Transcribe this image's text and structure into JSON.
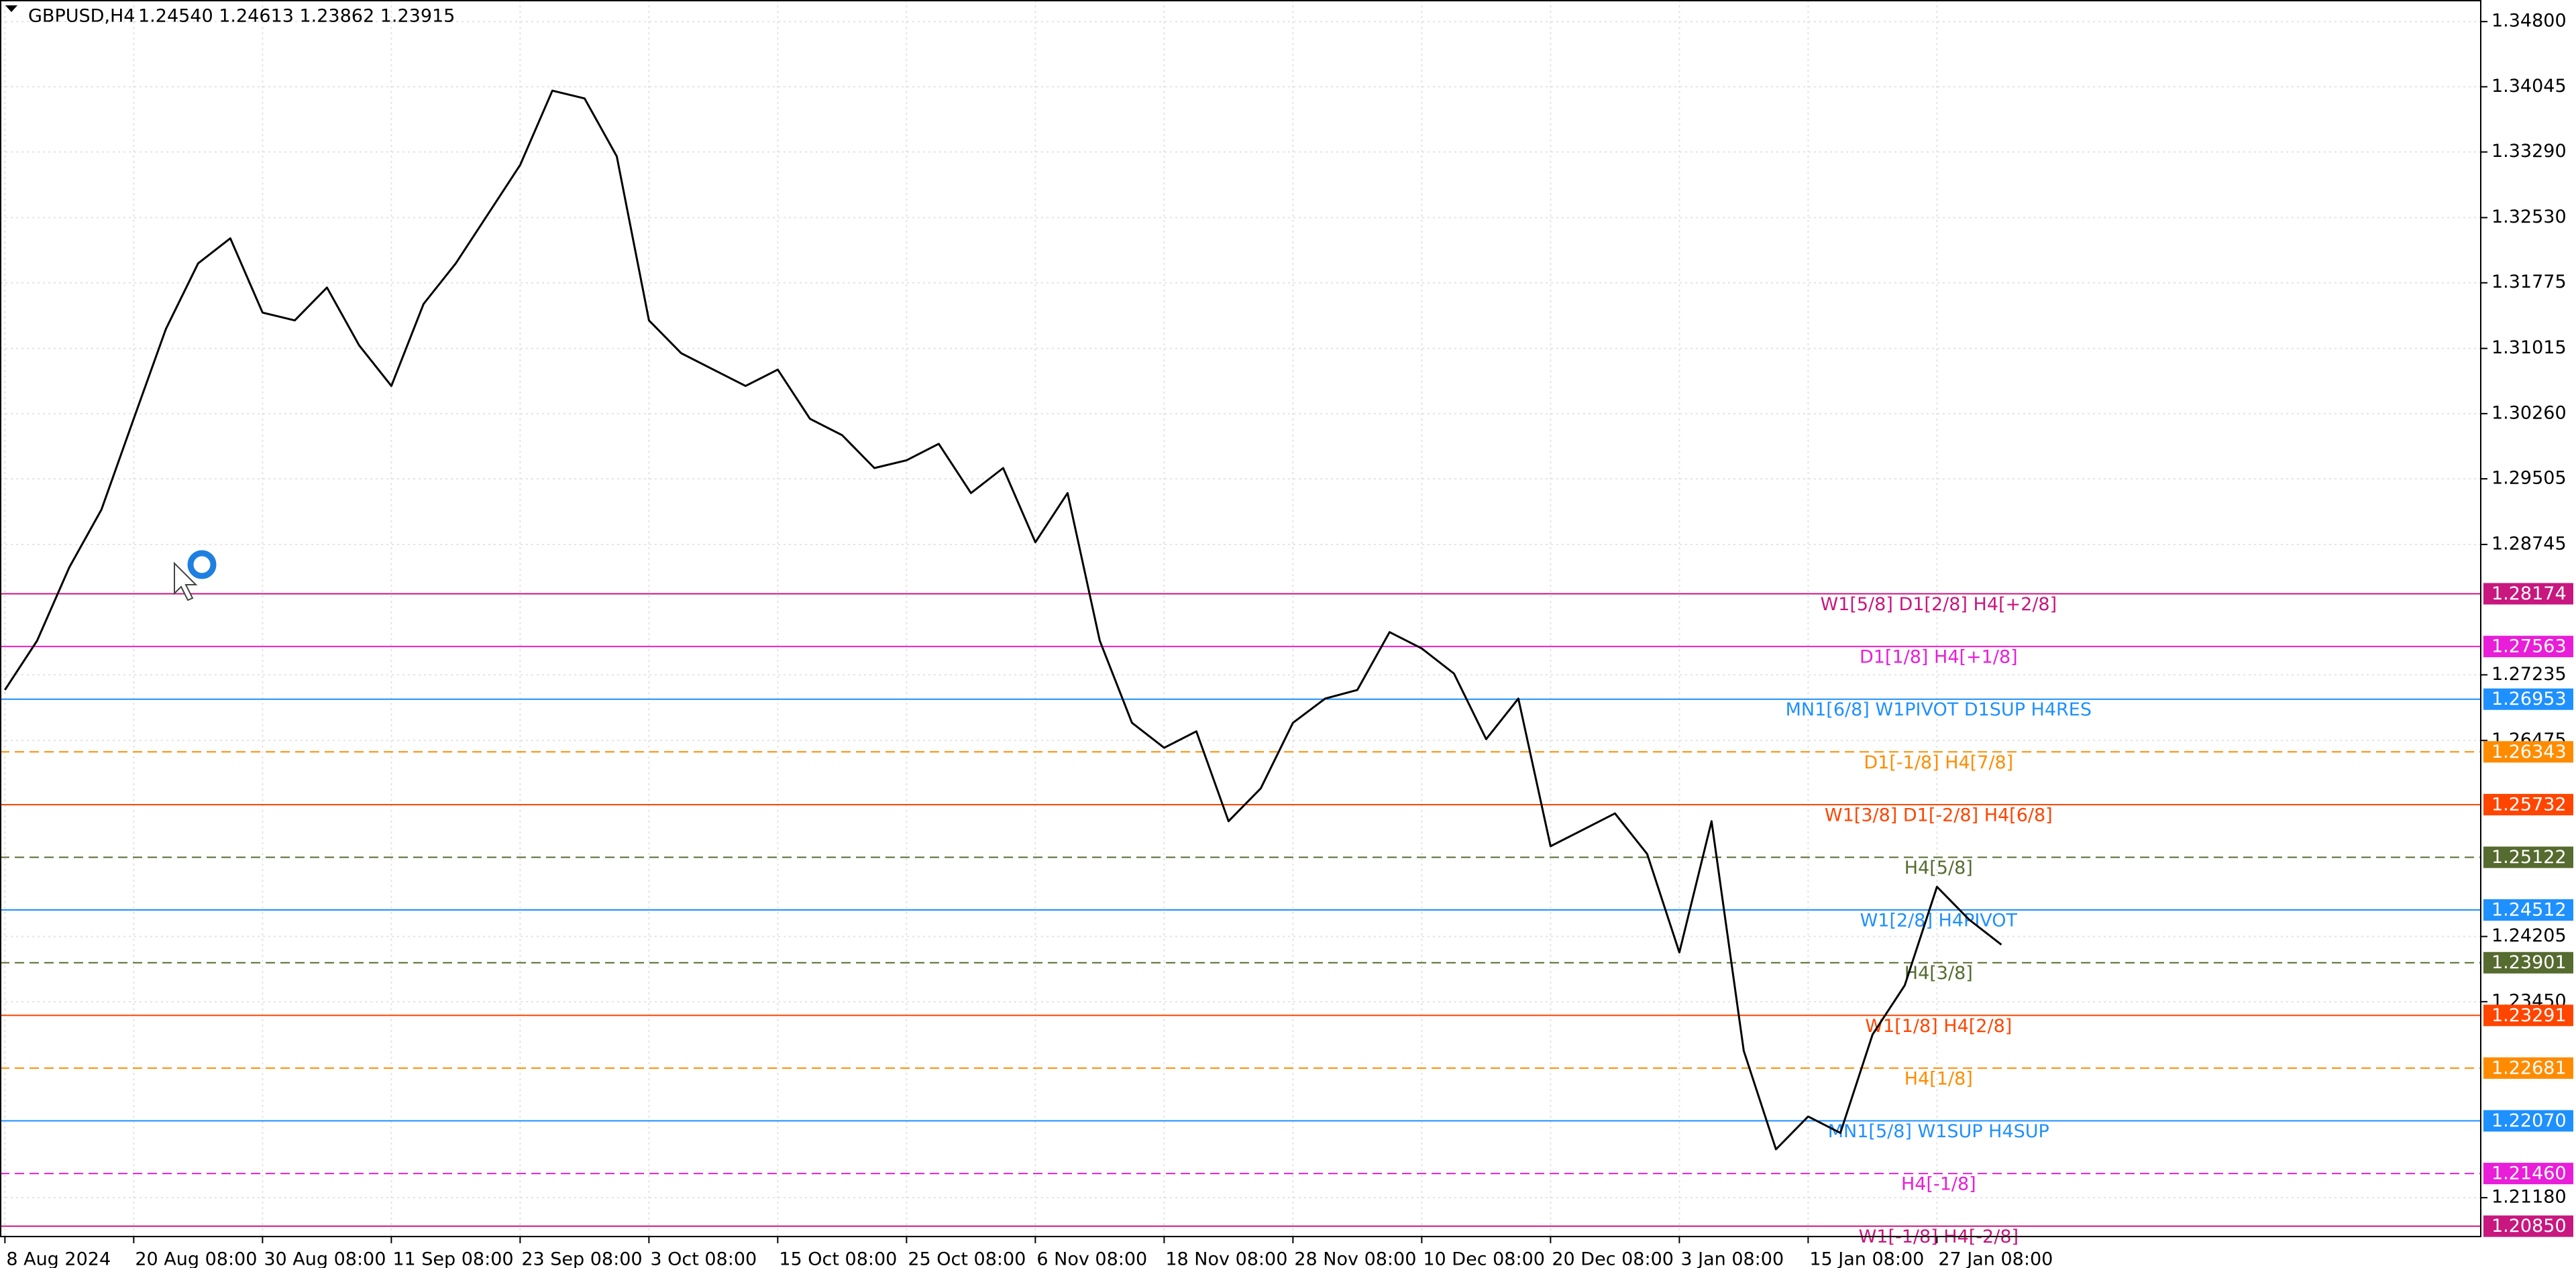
{
  "header": {
    "symbol": "GBPUSD,H4",
    "ohlc": "1.24540 1.24613 1.23862 1.23915"
  },
  "chart_data": {
    "type": "line",
    "categories": [
      "8 Aug 2024",
      null,
      null,
      null,
      "20 Aug 08:00",
      null,
      null,
      null,
      "30 Aug 08:00",
      null,
      null,
      null,
      "11 Sep 08:00",
      null,
      null,
      null,
      "23 Sep 08:00",
      null,
      null,
      null,
      "3 Oct 08:00",
      null,
      null,
      null,
      "15 Oct 08:00",
      null,
      null,
      null,
      "25 Oct 08:00",
      null,
      null,
      null,
      "6 Nov 08:00",
      null,
      null,
      null,
      "18 Nov 08:00",
      null,
      null,
      null,
      "28 Nov 08:00",
      null,
      null,
      null,
      "10 Dec 08:00",
      null,
      null,
      null,
      "20 Dec 08:00",
      null,
      null,
      null,
      "3 Jan 08:00",
      null,
      null,
      null,
      "15 Jan 08:00",
      null,
      null,
      null,
      "27 Jan 08:00",
      null,
      null
    ],
    "values": [
      1.2706,
      1.2763,
      1.2848,
      1.2915,
      1.302,
      1.3124,
      1.32,
      1.3229,
      1.3143,
      1.3134,
      1.3172,
      1.3105,
      1.3058,
      1.3153,
      1.32,
      1.3257,
      1.3314,
      1.34,
      1.3391,
      1.3324,
      1.3134,
      1.3096,
      1.3077,
      1.3058,
      1.3077,
      1.302,
      1.3001,
      1.2963,
      1.2972,
      1.2991,
      1.2934,
      1.2963,
      1.2877,
      1.2934,
      1.2763,
      1.2668,
      1.2639,
      1.2658,
      1.2554,
      1.2592,
      1.2668,
      1.2696,
      1.2706,
      1.2773,
      1.2754,
      1.2725,
      1.2649,
      1.2696,
      1.2525,
      1.2544,
      1.2563,
      1.2516,
      1.2402,
      1.2554,
      1.2288,
      1.2174,
      1.2212,
      1.2193,
      1.2307,
      1.2364,
      1.2478,
      1.244,
      1.2411
    ],
    "color": "#000000",
    "ylim": [
      1.2073,
      1.3505
    ],
    "yticks": [
      {
        "value": 1.348,
        "label": "1.34800"
      },
      1.34045,
      {
        "value": 1.3329,
        "label": "1.33290"
      },
      {
        "value": 1.3253,
        "label": "1.32530"
      },
      1.31775,
      1.31015,
      {
        "value": 1.3026,
        "label": "1.30260"
      },
      1.29505,
      1.28745,
      1.27235,
      1.26475,
      1.24205,
      {
        "value": 1.2345,
        "label": "1.23450"
      },
      {
        "value": 1.2118,
        "label": "1.21180"
      }
    ],
    "grid": true,
    "levels": [
      {
        "value": 1.28174,
        "label": "W1[5/8] D1[2/8] H4[+2/8]",
        "color": "#c8177e",
        "dashed": false
      },
      {
        "value": 1.27563,
        "label": "D1[1/8] H4[+1/8]",
        "color": "#e81ed8",
        "dashed": false
      },
      {
        "value": 1.26953,
        "label": "MN1[6/8] W1PIVOT D1SUP H4RES",
        "color": "#1e90ff",
        "dashed": false
      },
      {
        "value": 1.26343,
        "label": "D1[-1/8] H4[7/8]",
        "color": "#ff8c00",
        "dashed": true
      },
      {
        "value": 1.25732,
        "label": "W1[3/8] D1[-2/8] H4[6/8]",
        "color": "#ff4500",
        "dashed": false
      },
      {
        "value": 1.25122,
        "label": "H4[5/8]",
        "color": "#556b2f",
        "dashed": true
      },
      {
        "value": 1.24512,
        "label": "W1[2/8] H4PIVOT",
        "color": "#1e90ff",
        "dashed": false
      },
      {
        "value": 1.23901,
        "label": "H4[3/8]",
        "color": "#556b2f",
        "dashed": true
      },
      {
        "value": 1.23291,
        "label": "W1[1/8] H4[2/8]",
        "color": "#ff4500",
        "dashed": false
      },
      {
        "value": 1.22681,
        "label": "H4[1/8]",
        "color": "#ff8c00",
        "dashed": true
      },
      {
        "value": 1.2207,
        "value_label": "1.22070",
        "label": "MN1[5/8] W1SUP H4SUP",
        "color": "#1e90ff",
        "dashed": false
      },
      {
        "value": 1.2146,
        "value_label": "1.21460",
        "label": "H4[-1/8]",
        "color": "#e81ed8",
        "dashed": true
      },
      {
        "value": 1.2085,
        "value_label": "1.20850",
        "label": "W1[-1/8] H4[-2/8]",
        "color": "#c8177e",
        "dashed": false
      }
    ]
  }
}
